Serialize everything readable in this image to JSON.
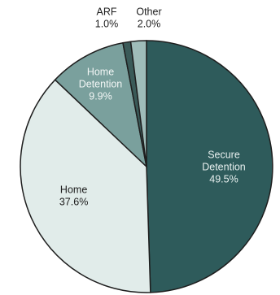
{
  "chart_data": {
    "type": "pie",
    "title": "",
    "start": "12 o'clock",
    "direction": "clockwise",
    "slices": [
      {
        "name": [
          "Secure",
          "Detention"
        ],
        "percent_label": "49.5%",
        "value": 49.5,
        "color": "#2e5b5b",
        "text_color": "#e8f0ef",
        "label_placement": "inside"
      },
      {
        "name": [
          "Home"
        ],
        "percent_label": "37.6%",
        "value": 37.6,
        "color": "#e1ecea",
        "text_color": "#1c1c1c",
        "label_placement": "inside"
      },
      {
        "name": [
          "Home",
          "Detention"
        ],
        "percent_label": "9.9%",
        "value": 9.9,
        "color": "#7aa09d",
        "text_color": "#f2f6f5",
        "label_placement": "inside"
      },
      {
        "name": [
          "ARF"
        ],
        "percent_label": "1.0%",
        "value": 1.0,
        "color": "#3a5a58",
        "text_color": "#1c1c1c",
        "label_placement": "outside"
      },
      {
        "name": [
          "Other"
        ],
        "percent_label": "2.0%",
        "value": 2.0,
        "color": "#9fbcb9",
        "text_color": "#1c1c1c",
        "label_placement": "outside"
      }
    ]
  }
}
